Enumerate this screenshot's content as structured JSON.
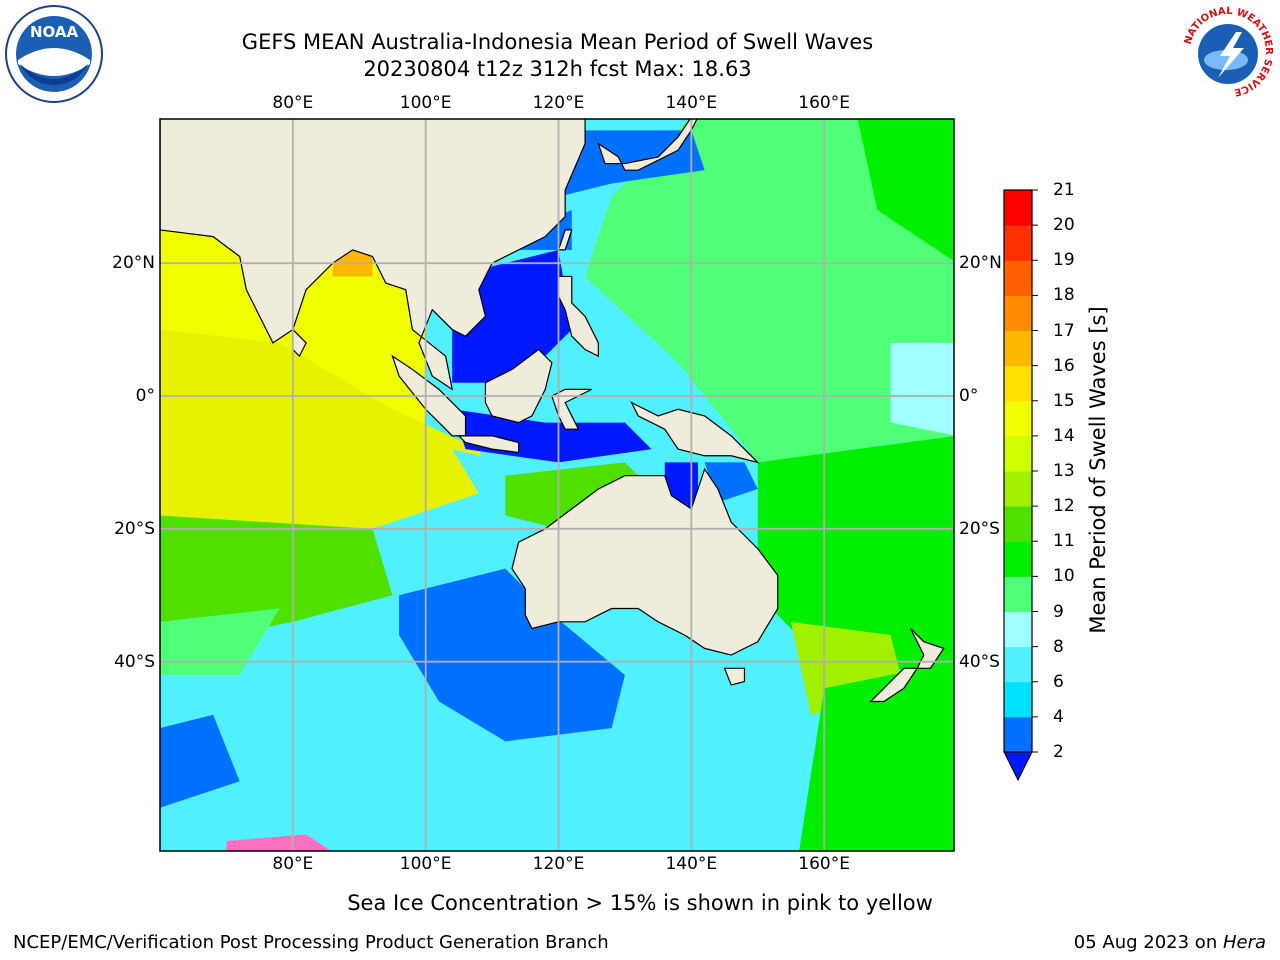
{
  "header": {
    "title_line1": "GEFS MEAN Australia-Indonesia Mean Period of Swell Waves",
    "title_line2": "20230804 t12z 312h fcst   Max: 18.63"
  },
  "logos": {
    "left": {
      "icon": "noaa-logo",
      "text": "NOAA"
    },
    "right": {
      "icon": "nws-logo",
      "text": "NATIONAL WEATHER SERVICE"
    }
  },
  "map": {
    "lon_range": [
      60,
      180
    ],
    "lat_range": [
      -70,
      42
    ],
    "lon_ticks": [
      "80°E",
      "100°E",
      "120°E",
      "140°E",
      "160°E"
    ],
    "lon_tick_values": [
      80,
      100,
      120,
      140,
      160
    ],
    "lat_ticks": [
      "20°N",
      "0°",
      "20°S",
      "40°S"
    ],
    "lat_tick_values": [
      20,
      0,
      -20,
      -40
    ],
    "grid": true,
    "land_color": "#efecdc"
  },
  "colorbar": {
    "label": "Mean Period of Swell Waves [s]",
    "ticks": [
      "21",
      "20",
      "19",
      "18",
      "17",
      "16",
      "15",
      "14",
      "13",
      "12",
      "11",
      "10",
      "9",
      "8",
      "6",
      "4",
      "2"
    ],
    "levels": [
      2,
      4,
      6,
      8,
      9,
      10,
      11,
      12,
      13,
      14,
      15,
      16,
      17,
      18,
      19,
      20,
      21
    ],
    "colors": [
      "#0070ff",
      "#00e0ff",
      "#50f0ff",
      "#a0ffff",
      "#50ff78",
      "#00ee00",
      "#50e000",
      "#a0f000",
      "#d0ff00",
      "#f0ff00",
      "#ffe000",
      "#ffb800",
      "#ff8c00",
      "#ff6000",
      "#ff3000",
      "#ff0000"
    ],
    "under_color": "#0018ff"
  },
  "ice_note": "Sea Ice Concentration > 15% is shown in pink to yellow",
  "footer": {
    "left": "NCEP/EMC/Verification Post Processing Product Generation Branch",
    "right_date": "05 Aug 2023 on ",
    "right_machine": "Hera"
  }
}
